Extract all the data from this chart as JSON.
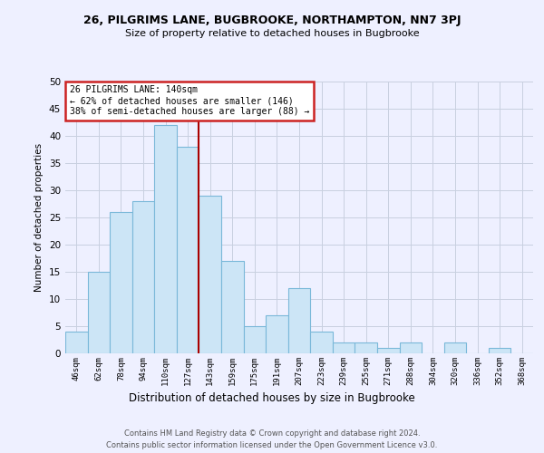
{
  "title": "26, PILGRIMS LANE, BUGBROOKE, NORTHAMPTON, NN7 3PJ",
  "subtitle": "Size of property relative to detached houses in Bugbrooke",
  "xlabel": "Distribution of detached houses by size in Bugbrooke",
  "ylabel": "Number of detached properties",
  "footer_line1": "Contains HM Land Registry data © Crown copyright and database right 2024.",
  "footer_line2": "Contains public sector information licensed under the Open Government Licence v3.0.",
  "bin_labels": [
    "46sqm",
    "62sqm",
    "78sqm",
    "94sqm",
    "110sqm",
    "127sqm",
    "143sqm",
    "159sqm",
    "175sqm",
    "191sqm",
    "207sqm",
    "223sqm",
    "239sqm",
    "255sqm",
    "271sqm",
    "288sqm",
    "304sqm",
    "320sqm",
    "336sqm",
    "352sqm",
    "368sqm"
  ],
  "values": [
    4,
    15,
    26,
    28,
    42,
    38,
    29,
    17,
    5,
    7,
    12,
    4,
    2,
    2,
    1,
    2,
    0,
    2,
    0,
    1,
    0
  ],
  "bar_color": "#cce5f6",
  "bar_edge_color": "#7ab8d9",
  "vline_x": 5.5,
  "vline_color": "#aa0000",
  "annotation_title": "26 PILGRIMS LANE: 140sqm",
  "annotation_line2": "← 62% of detached houses are smaller (146)",
  "annotation_line3": "38% of semi-detached houses are larger (88) →",
  "annotation_box_color": "#ffffff",
  "annotation_border_color": "#cc2222",
  "ylim": [
    0,
    50
  ],
  "yticks": [
    0,
    5,
    10,
    15,
    20,
    25,
    30,
    35,
    40,
    45,
    50
  ],
  "background_color": "#eef0ff"
}
